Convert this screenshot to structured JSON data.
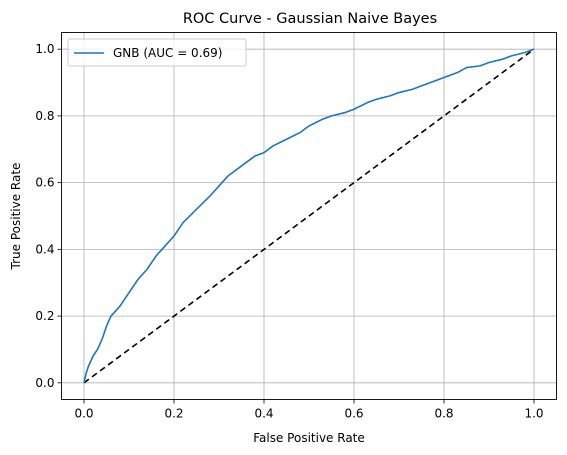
{
  "chart_data": {
    "type": "line",
    "title": "ROC Curve - Gaussian Naive Bayes",
    "xlabel": "False Positive Rate",
    "ylabel": "True Positive Rate",
    "xlim": [
      -0.05,
      1.05
    ],
    "ylim": [
      -0.05,
      1.05
    ],
    "xticks": [
      0.0,
      0.2,
      0.4,
      0.6,
      0.8,
      1.0
    ],
    "yticks": [
      0.0,
      0.2,
      0.4,
      0.6,
      0.8,
      1.0
    ],
    "tick_labels": [
      "0.0",
      "0.2",
      "0.4",
      "0.6",
      "0.8",
      "1.0"
    ],
    "grid": true,
    "legend_position": "top-left",
    "series": [
      {
        "name": "GNB (AUC = 0.69)",
        "color": "#1f77b4",
        "style": "solid",
        "x": [
          0.0,
          0.005,
          0.01,
          0.02,
          0.03,
          0.04,
          0.05,
          0.06,
          0.08,
          0.1,
          0.12,
          0.14,
          0.16,
          0.18,
          0.2,
          0.22,
          0.25,
          0.28,
          0.3,
          0.32,
          0.35,
          0.38,
          0.4,
          0.42,
          0.45,
          0.48,
          0.5,
          0.53,
          0.55,
          0.58,
          0.6,
          0.63,
          0.65,
          0.68,
          0.7,
          0.73,
          0.75,
          0.78,
          0.8,
          0.83,
          0.85,
          0.88,
          0.9,
          0.93,
          0.95,
          0.98,
          1.0
        ],
        "y": [
          0.0,
          0.03,
          0.05,
          0.08,
          0.1,
          0.13,
          0.17,
          0.2,
          0.23,
          0.27,
          0.31,
          0.34,
          0.38,
          0.41,
          0.44,
          0.48,
          0.52,
          0.56,
          0.59,
          0.62,
          0.65,
          0.68,
          0.69,
          0.71,
          0.73,
          0.75,
          0.77,
          0.79,
          0.8,
          0.81,
          0.82,
          0.84,
          0.85,
          0.86,
          0.87,
          0.88,
          0.89,
          0.905,
          0.915,
          0.93,
          0.945,
          0.95,
          0.96,
          0.97,
          0.98,
          0.99,
          1.0
        ]
      },
      {
        "name": "",
        "color": "#000000",
        "style": "dashed",
        "x": [
          0.0,
          1.0
        ],
        "y": [
          0.0,
          1.0
        ]
      }
    ]
  }
}
